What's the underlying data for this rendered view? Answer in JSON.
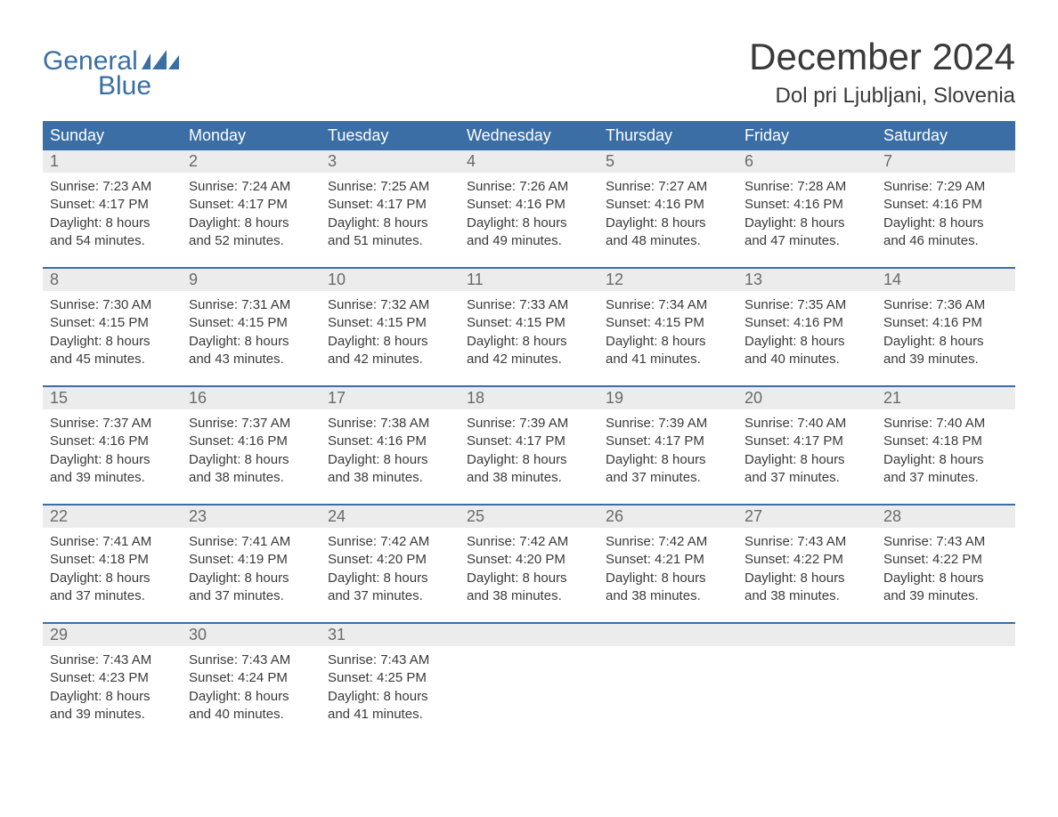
{
  "brand": {
    "word1": "General",
    "word2": "Blue",
    "color": "#3a6ea5"
  },
  "title": "December 2024",
  "location": "Dol pri Ljubljani, Slovenia",
  "colors": {
    "headerBg": "#3a6ea5",
    "headerText": "#ffffff",
    "dayNumBg": "#ececec",
    "dayNumText": "#6a6a6a",
    "bodyText": "#3a3a3a",
    "weekBorder": "#3a6ea5",
    "pageBg": "#ffffff"
  },
  "typography": {
    "titleFontSize": 42,
    "locationFontSize": 24,
    "dowFontSize": 18,
    "dayNumFontSize": 18,
    "cellFontSize": 15
  },
  "daysOfWeek": [
    "Sunday",
    "Monday",
    "Tuesday",
    "Wednesday",
    "Thursday",
    "Friday",
    "Saturday"
  ],
  "weeks": [
    [
      {
        "n": "1",
        "sunrise": "Sunrise: 7:23 AM",
        "sunset": "Sunset: 4:17 PM",
        "dl1": "Daylight: 8 hours",
        "dl2": "and 54 minutes."
      },
      {
        "n": "2",
        "sunrise": "Sunrise: 7:24 AM",
        "sunset": "Sunset: 4:17 PM",
        "dl1": "Daylight: 8 hours",
        "dl2": "and 52 minutes."
      },
      {
        "n": "3",
        "sunrise": "Sunrise: 7:25 AM",
        "sunset": "Sunset: 4:17 PM",
        "dl1": "Daylight: 8 hours",
        "dl2": "and 51 minutes."
      },
      {
        "n": "4",
        "sunrise": "Sunrise: 7:26 AM",
        "sunset": "Sunset: 4:16 PM",
        "dl1": "Daylight: 8 hours",
        "dl2": "and 49 minutes."
      },
      {
        "n": "5",
        "sunrise": "Sunrise: 7:27 AM",
        "sunset": "Sunset: 4:16 PM",
        "dl1": "Daylight: 8 hours",
        "dl2": "and 48 minutes."
      },
      {
        "n": "6",
        "sunrise": "Sunrise: 7:28 AM",
        "sunset": "Sunset: 4:16 PM",
        "dl1": "Daylight: 8 hours",
        "dl2": "and 47 minutes."
      },
      {
        "n": "7",
        "sunrise": "Sunrise: 7:29 AM",
        "sunset": "Sunset: 4:16 PM",
        "dl1": "Daylight: 8 hours",
        "dl2": "and 46 minutes."
      }
    ],
    [
      {
        "n": "8",
        "sunrise": "Sunrise: 7:30 AM",
        "sunset": "Sunset: 4:15 PM",
        "dl1": "Daylight: 8 hours",
        "dl2": "and 45 minutes."
      },
      {
        "n": "9",
        "sunrise": "Sunrise: 7:31 AM",
        "sunset": "Sunset: 4:15 PM",
        "dl1": "Daylight: 8 hours",
        "dl2": "and 43 minutes."
      },
      {
        "n": "10",
        "sunrise": "Sunrise: 7:32 AM",
        "sunset": "Sunset: 4:15 PM",
        "dl1": "Daylight: 8 hours",
        "dl2": "and 42 minutes."
      },
      {
        "n": "11",
        "sunrise": "Sunrise: 7:33 AM",
        "sunset": "Sunset: 4:15 PM",
        "dl1": "Daylight: 8 hours",
        "dl2": "and 42 minutes."
      },
      {
        "n": "12",
        "sunrise": "Sunrise: 7:34 AM",
        "sunset": "Sunset: 4:15 PM",
        "dl1": "Daylight: 8 hours",
        "dl2": "and 41 minutes."
      },
      {
        "n": "13",
        "sunrise": "Sunrise: 7:35 AM",
        "sunset": "Sunset: 4:16 PM",
        "dl1": "Daylight: 8 hours",
        "dl2": "and 40 minutes."
      },
      {
        "n": "14",
        "sunrise": "Sunrise: 7:36 AM",
        "sunset": "Sunset: 4:16 PM",
        "dl1": "Daylight: 8 hours",
        "dl2": "and 39 minutes."
      }
    ],
    [
      {
        "n": "15",
        "sunrise": "Sunrise: 7:37 AM",
        "sunset": "Sunset: 4:16 PM",
        "dl1": "Daylight: 8 hours",
        "dl2": "and 39 minutes."
      },
      {
        "n": "16",
        "sunrise": "Sunrise: 7:37 AM",
        "sunset": "Sunset: 4:16 PM",
        "dl1": "Daylight: 8 hours",
        "dl2": "and 38 minutes."
      },
      {
        "n": "17",
        "sunrise": "Sunrise: 7:38 AM",
        "sunset": "Sunset: 4:16 PM",
        "dl1": "Daylight: 8 hours",
        "dl2": "and 38 minutes."
      },
      {
        "n": "18",
        "sunrise": "Sunrise: 7:39 AM",
        "sunset": "Sunset: 4:17 PM",
        "dl1": "Daylight: 8 hours",
        "dl2": "and 38 minutes."
      },
      {
        "n": "19",
        "sunrise": "Sunrise: 7:39 AM",
        "sunset": "Sunset: 4:17 PM",
        "dl1": "Daylight: 8 hours",
        "dl2": "and 37 minutes."
      },
      {
        "n": "20",
        "sunrise": "Sunrise: 7:40 AM",
        "sunset": "Sunset: 4:17 PM",
        "dl1": "Daylight: 8 hours",
        "dl2": "and 37 minutes."
      },
      {
        "n": "21",
        "sunrise": "Sunrise: 7:40 AM",
        "sunset": "Sunset: 4:18 PM",
        "dl1": "Daylight: 8 hours",
        "dl2": "and 37 minutes."
      }
    ],
    [
      {
        "n": "22",
        "sunrise": "Sunrise: 7:41 AM",
        "sunset": "Sunset: 4:18 PM",
        "dl1": "Daylight: 8 hours",
        "dl2": "and 37 minutes."
      },
      {
        "n": "23",
        "sunrise": "Sunrise: 7:41 AM",
        "sunset": "Sunset: 4:19 PM",
        "dl1": "Daylight: 8 hours",
        "dl2": "and 37 minutes."
      },
      {
        "n": "24",
        "sunrise": "Sunrise: 7:42 AM",
        "sunset": "Sunset: 4:20 PM",
        "dl1": "Daylight: 8 hours",
        "dl2": "and 37 minutes."
      },
      {
        "n": "25",
        "sunrise": "Sunrise: 7:42 AM",
        "sunset": "Sunset: 4:20 PM",
        "dl1": "Daylight: 8 hours",
        "dl2": "and 38 minutes."
      },
      {
        "n": "26",
        "sunrise": "Sunrise: 7:42 AM",
        "sunset": "Sunset: 4:21 PM",
        "dl1": "Daylight: 8 hours",
        "dl2": "and 38 minutes."
      },
      {
        "n": "27",
        "sunrise": "Sunrise: 7:43 AM",
        "sunset": "Sunset: 4:22 PM",
        "dl1": "Daylight: 8 hours",
        "dl2": "and 38 minutes."
      },
      {
        "n": "28",
        "sunrise": "Sunrise: 7:43 AM",
        "sunset": "Sunset: 4:22 PM",
        "dl1": "Daylight: 8 hours",
        "dl2": "and 39 minutes."
      }
    ],
    [
      {
        "n": "29",
        "sunrise": "Sunrise: 7:43 AM",
        "sunset": "Sunset: 4:23 PM",
        "dl1": "Daylight: 8 hours",
        "dl2": "and 39 minutes."
      },
      {
        "n": "30",
        "sunrise": "Sunrise: 7:43 AM",
        "sunset": "Sunset: 4:24 PM",
        "dl1": "Daylight: 8 hours",
        "dl2": "and 40 minutes."
      },
      {
        "n": "31",
        "sunrise": "Sunrise: 7:43 AM",
        "sunset": "Sunset: 4:25 PM",
        "dl1": "Daylight: 8 hours",
        "dl2": "and 41 minutes."
      },
      null,
      null,
      null,
      null
    ]
  ]
}
